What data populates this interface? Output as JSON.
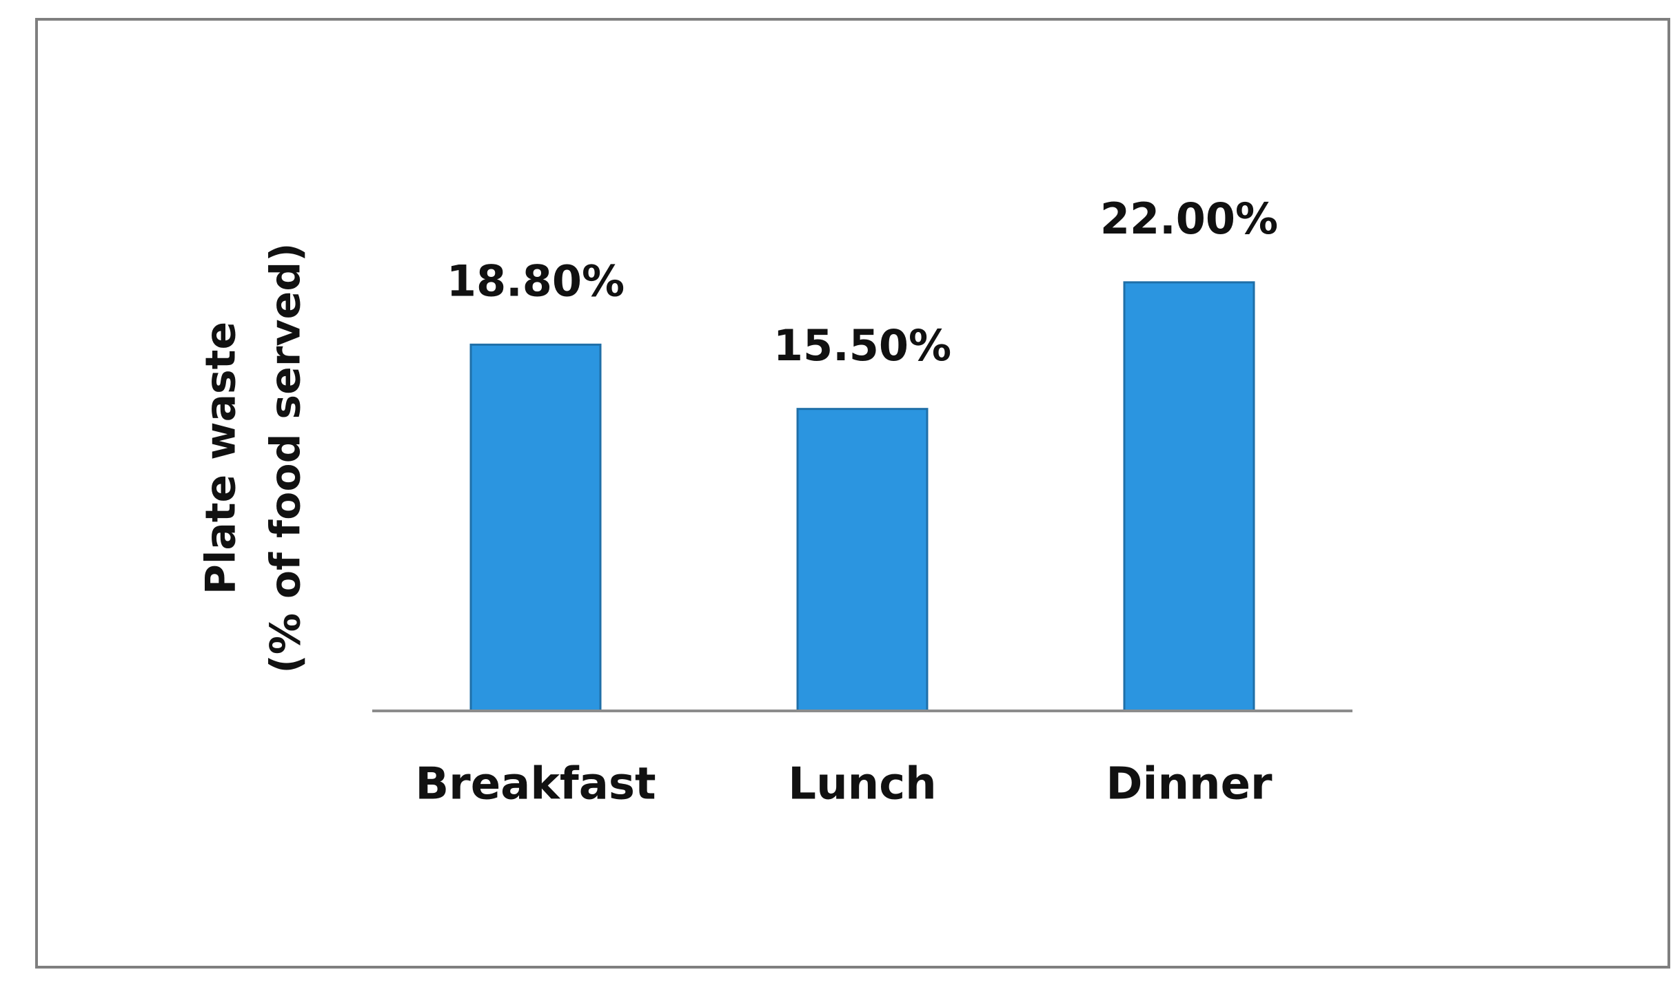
{
  "chart_data": {
    "type": "bar",
    "ylabel": [
      "Plate waste",
      "(% of food served)"
    ],
    "categories": [
      "Breakfast",
      "Lunch",
      "Dinner"
    ],
    "values": [
      18.8,
      15.5,
      22.0
    ],
    "value_labels": [
      "18.80%",
      "15.50%",
      "22.00%"
    ],
    "color": "#2b95e0",
    "ylim": [
      0,
      25
    ]
  }
}
